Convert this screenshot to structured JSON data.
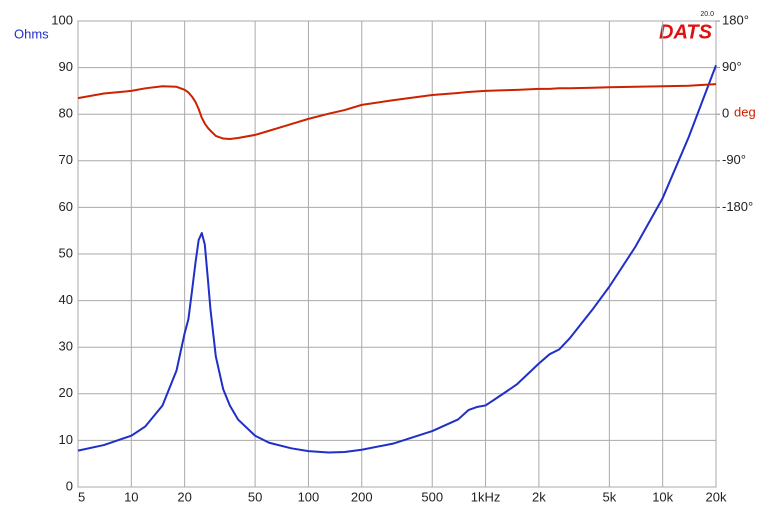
{
  "chart_data": {
    "type": "line",
    "logo": "DATS",
    "version": "20.0",
    "ylabel": "Ohms",
    "y2label": "deg",
    "x": [
      5,
      7,
      10,
      12,
      15,
      18,
      20,
      21,
      22,
      23,
      24,
      25,
      26,
      27,
      28,
      30,
      33,
      36,
      40,
      50,
      60,
      80,
      100,
      130,
      160,
      200,
      300,
      500,
      700,
      800,
      900,
      1000,
      1200,
      1500,
      2000,
      2300,
      2600,
      3000,
      4000,
      5000,
      7000,
      10000,
      14000,
      20000
    ],
    "series": [
      {
        "name": "Ohms",
        "color": "#1f2fc8",
        "axis": "y",
        "values": [
          7.8,
          9,
          11,
          13,
          17.5,
          25,
          33,
          36,
          42,
          48,
          53,
          54.5,
          52,
          45,
          38,
          28,
          21,
          17.5,
          14.5,
          11,
          9.5,
          8.3,
          7.7,
          7.4,
          7.5,
          8,
          9.3,
          12,
          14.5,
          16.5,
          17.2,
          17.5,
          19.5,
          22,
          26.5,
          28.5,
          29.5,
          32,
          38,
          43,
          51.5,
          62,
          75,
          90.5
        ]
      },
      {
        "name": "deg",
        "color": "#cc2200",
        "axis": "y2",
        "values": [
          31,
          40,
          45,
          50,
          54,
          53,
          47,
          42,
          34,
          24,
          10,
          -7,
          -18,
          -26,
          -32,
          -42,
          -47,
          -48,
          -46,
          -40,
          -32,
          -19,
          -9,
          1,
          8,
          18,
          27,
          37,
          41,
          43,
          44,
          45,
          46,
          47,
          49,
          49,
          50,
          50,
          51,
          52,
          53,
          54,
          55,
          58
        ]
      }
    ],
    "xlog": true,
    "xlim": [
      5,
      20000
    ],
    "xticks": [
      5,
      10,
      20,
      50,
      100,
      200,
      500,
      {
        "value": 1000,
        "label": "1kHz"
      },
      {
        "value": 2000,
        "label": "2k"
      },
      {
        "value": 5000,
        "label": "5k"
      },
      {
        "value": 10000,
        "label": "10k"
      },
      {
        "value": 20000,
        "label": "20k"
      }
    ],
    "ylim": [
      0,
      100
    ],
    "yticks": [
      0,
      10,
      20,
      30,
      40,
      50,
      60,
      70,
      80,
      90,
      100
    ],
    "y2lim": [
      -720,
      180
    ],
    "y2ticks": [
      {
        "value": 180,
        "label": "180°"
      },
      {
        "value": 90,
        "label": "90°"
      },
      0,
      {
        "value": -90,
        "label": "-90°"
      },
      {
        "value": -180,
        "label": "-180°"
      }
    ],
    "grid": true
  }
}
